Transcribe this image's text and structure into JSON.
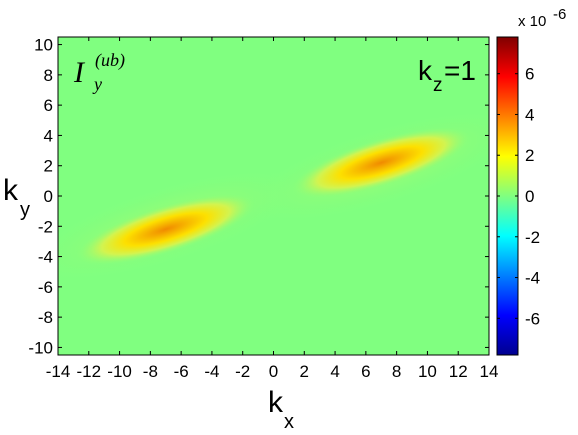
{
  "chart_data": {
    "type": "heatmap",
    "panel_label": {
      "main": "k",
      "sub": "z",
      "rest": "=1"
    },
    "quantity_label": {
      "symbol": "I",
      "sub": "y",
      "sup": "(ub)"
    },
    "xlabel": {
      "main": "k",
      "sub": "x"
    },
    "ylabel": {
      "main": "k",
      "sub": "y"
    },
    "xlim": [
      -14,
      14
    ],
    "ylim": [
      -10.5,
      10.5
    ],
    "xticks": [
      "-14",
      "-12",
      "-10",
      "-8",
      "-6",
      "-4",
      "-2",
      "0",
      "2",
      "4",
      "6",
      "8",
      "10",
      "12",
      "14"
    ],
    "yticks": [
      "-10",
      "-8",
      "-6",
      "-4",
      "-2",
      "0",
      "2",
      "4",
      "6",
      "8",
      "10"
    ],
    "colorbar": {
      "colormap": "jet",
      "range": [
        -7.8,
        7.8
      ],
      "exponent_label": "x 10",
      "exponent": "-6",
      "ticks": [
        "-6",
        "-4",
        "-2",
        "0",
        "2",
        "4",
        "6"
      ]
    },
    "features": [
      {
        "kx": 7,
        "ky": 2.2,
        "peak": 3.3,
        "note": "positive lobe"
      },
      {
        "kx": -7,
        "ky": -2.2,
        "peak": 3.3,
        "note": "symmetric positive lobe"
      }
    ]
  }
}
